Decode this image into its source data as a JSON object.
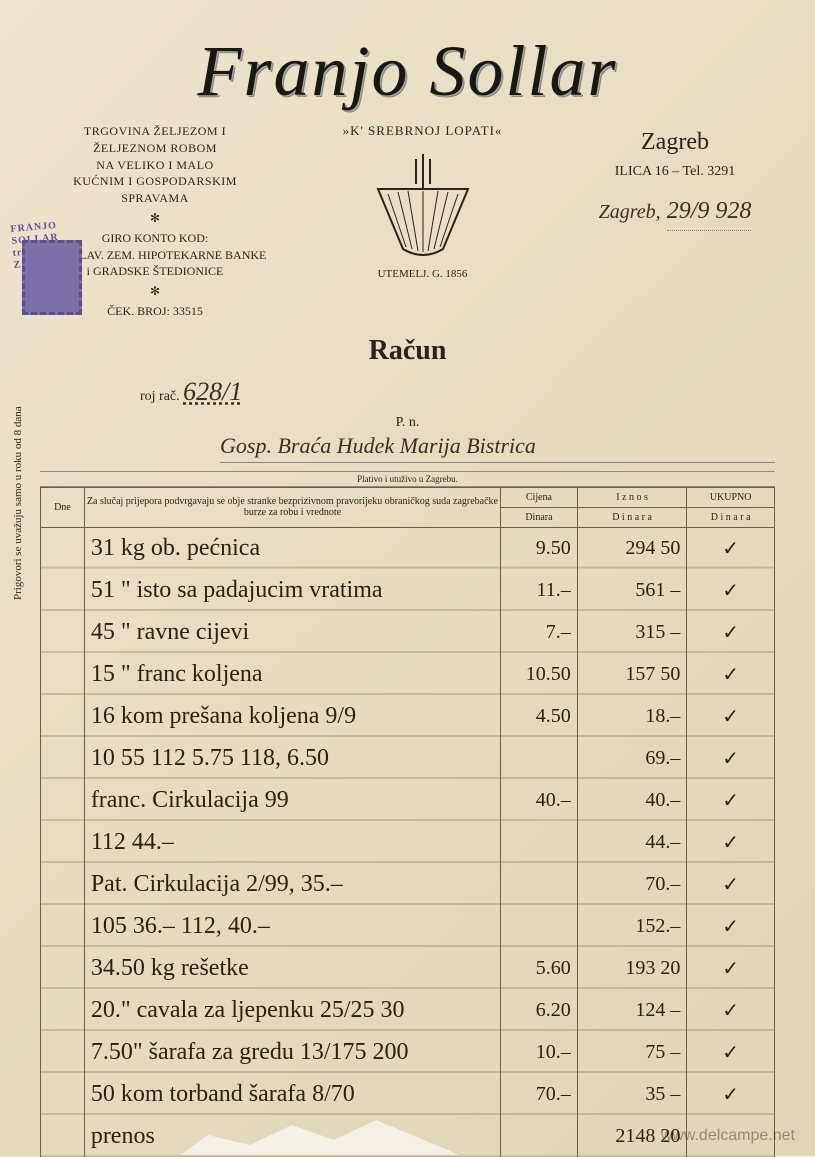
{
  "company": {
    "name": "Franjo Sollar",
    "business_line1": "TRGOVINA ŽELJEZOM i",
    "business_line2": "ŽELJEZNOM ROBOM",
    "business_line3": "NA VELIKO i MALO",
    "business_line4": "KUĆNIM i GOSPODARSKIM",
    "business_line5": "SPRAVAMA",
    "giro_label": "GIRO KONTO KOD:",
    "bank_line1": "HRV. SLAV. ZEM. HIPOTEKARNE BANKE",
    "bank_line2": "i GRADSKE ŠTEDIONICE",
    "cek_label": "ČEK. BROJ: 33515"
  },
  "logo": {
    "arc_left": "»K' SREBRNOJ",
    "arc_right": "LOPATI«",
    "founded": "UTEMELJ.    G. 1856"
  },
  "location": {
    "city": "Zagreb",
    "address": "ILICA 16 – Tel. 3291",
    "place_script": "Zagreb,",
    "date": "29/9 928"
  },
  "doc": {
    "title": "Račun",
    "inv_label": "roj rač.",
    "inv_number": "628/1",
    "pn": "P. n.",
    "customer": "Gosp. Braća Hudek        Marija Bistrica",
    "terms_mid": "Plativo i utuživo u Zagrebu.",
    "vertical_note": "Prigovori se uvažuju samo u roku od 8 dana"
  },
  "stamp": {
    "overprint_l1": "FRANJO SOLLAR",
    "overprint_l2": "trg. željezom",
    "overprint_l3": "ZAGREB"
  },
  "table": {
    "headers": {
      "dne": "Dne",
      "desc": "Za slučaj prijepora podvrgavaju se obje stranke bezprizivnom pravorijeku obraničkog suda zagrebačke burze za robu i vrednote",
      "price": "Cijena",
      "price_sub": "Dinara",
      "amount": "I z n o s",
      "amount_sub": "D i n a r a",
      "total": "UKUPNO",
      "total_sub": "D i n a r a"
    },
    "rows": [
      {
        "qty": "31 kg",
        "desc": "ob. pećnica",
        "price": "9.50",
        "amt": "294 50",
        "chk": "✓"
      },
      {
        "qty": "51 \"",
        "desc": "isto sa padajucim vratima",
        "price": "11.–",
        "amt": "561 –",
        "chk": "✓"
      },
      {
        "qty": "45 \"",
        "desc": "ravne cijevi",
        "price": "7.–",
        "amt": "315 –",
        "chk": "✓"
      },
      {
        "qty": "15 \"",
        "desc": "franc koljena",
        "price": "10.50",
        "amt": "157 50",
        "chk": "✓"
      },
      {
        "qty": "16 kom",
        "desc": "prešana koljena 9/9",
        "price": "4.50",
        "amt": "18.–",
        "chk": "✓"
      },
      {
        "qty": "",
        "desc": "10 55    112 5.75  118, 6.50",
        "price": "",
        "amt": "69.–",
        "chk": "✓"
      },
      {
        "qty": "",
        "desc": "franc. Cirkulacija 99",
        "price": "40.–",
        "amt": "40.–",
        "chk": "✓"
      },
      {
        "qty": "",
        "desc": "           112  44.–",
        "price": "",
        "amt": "44.–",
        "chk": "✓"
      },
      {
        "qty": "",
        "desc": "Pat. Cirkulacija  2/99, 35.–",
        "price": "",
        "amt": "70.–",
        "chk": "✓"
      },
      {
        "qty": "",
        "desc": "   105 36.–   112, 40.–",
        "price": "",
        "amt": "152.–",
        "chk": "✓"
      },
      {
        "qty": "34.50 kg",
        "desc": "rešetke",
        "price": "5.60",
        "amt": "193 20",
        "chk": "✓"
      },
      {
        "qty": "20.\"",
        "desc": "cavala za ljepenku 25/25 30",
        "price": "6.20",
        "amt": "124 –",
        "chk": "✓"
      },
      {
        "qty": "7.50\"",
        "desc": "šarafa za gredu 13/175 200",
        "price": "10.–",
        "amt": "75 –",
        "chk": "✓"
      },
      {
        "qty": "50 kom",
        "desc": "torband šarafa 8/70",
        "price": "70.–",
        "amt": "35 –",
        "chk": "✓"
      },
      {
        "qty": "",
        "desc": "                     prenos",
        "price": "",
        "amt": "2148 20",
        "chk": ""
      }
    ]
  },
  "watermark": "www.delcampe.net",
  "colors": {
    "paper": "#e8e0c8",
    "ink": "#2a2418",
    "stamp": "#7a6fa8",
    "rule": "#6a6048"
  }
}
